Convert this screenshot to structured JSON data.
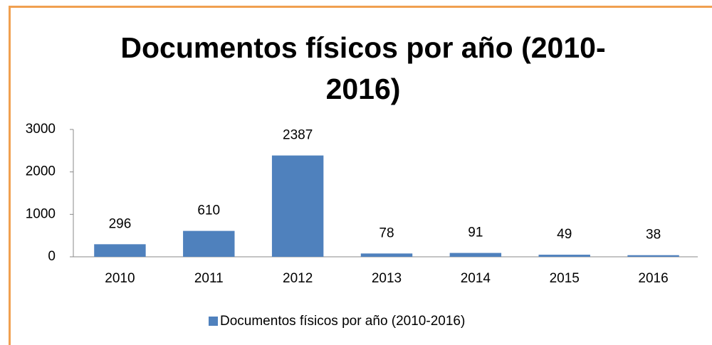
{
  "chart_data": {
    "type": "bar",
    "title": "Documentos físicos por año (2010-2016)",
    "categories": [
      "2010",
      "2011",
      "2012",
      "2013",
      "2014",
      "2015",
      "2016"
    ],
    "series": [
      {
        "name": "Documentos físicos por año (2010-2016)",
        "color": "#4f81bd",
        "values": [
          296,
          610,
          2387,
          78,
          91,
          49,
          38
        ]
      }
    ],
    "ylim": [
      0,
      3000
    ],
    "yticks": [
      0,
      1000,
      2000,
      3000
    ],
    "grid": false
  }
}
